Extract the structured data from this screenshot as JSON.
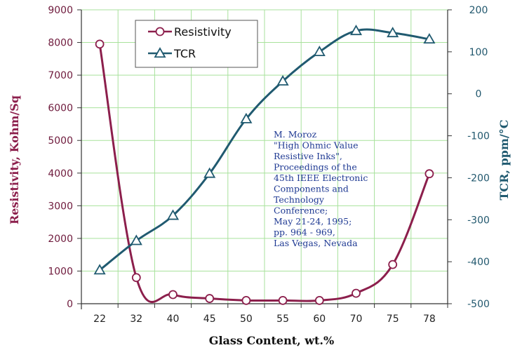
{
  "chart_data": {
    "type": "line",
    "categories": [
      "22",
      "32",
      "40",
      "45",
      "50",
      "55",
      "60",
      "70",
      "75",
      "78"
    ],
    "xlabel": "Glass Content, wt.%",
    "grid": true,
    "legend_placement": "top-left",
    "y_left": {
      "label": "Resistivity, Kohm/Sq",
      "ylim": [
        0,
        9000
      ],
      "ticks": [
        "0",
        "1000",
        "2000",
        "3000",
        "4000",
        "5000",
        "6000",
        "7000",
        "8000",
        "9000"
      ],
      "color": "#8c1f4c"
    },
    "y_right": {
      "label": "TCR, ppm/°C",
      "ylim": [
        -500,
        200
      ],
      "ticks": [
        "-500",
        "-400",
        "-300",
        "-200",
        "-100",
        "0",
        "100",
        "200"
      ],
      "color": "#205a70"
    },
    "series": [
      {
        "name": "Resistivity",
        "axis": "left",
        "marker": "circle",
        "color": "#8c1f4c",
        "values": [
          7950,
          800,
          280,
          160,
          100,
          100,
          100,
          320,
          1200,
          3980
        ]
      },
      {
        "name": "TCR",
        "axis": "right",
        "marker": "triangle",
        "color": "#205a70",
        "values": [
          -420,
          -350,
          -290,
          -190,
          -60,
          30,
          100,
          150,
          145,
          130
        ]
      }
    ],
    "annotation": [
      "M. Moroz",
      "\"High Ohmic Value",
      "Resistive Inks\",",
      "Proceedings of the",
      "45th IEEE Electronic",
      "Components and",
      "Technology",
      "Conference;",
      "May 21-24, 1995;",
      "pp. 964 - 969,",
      "Las Vegas, Nevada"
    ]
  }
}
